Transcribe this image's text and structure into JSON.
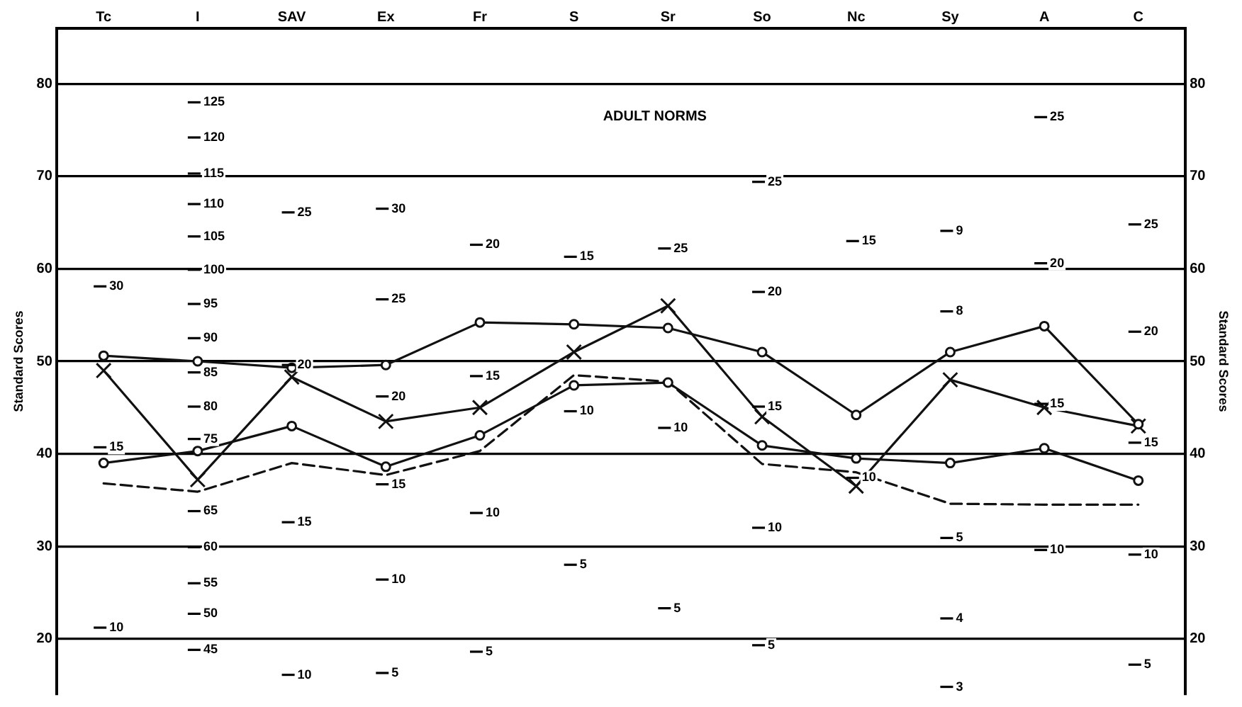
{
  "chart_data": {
    "type": "line",
    "ylabel": "Standard Scores",
    "y2label": "Standard Scores",
    "categories": [
      "Tc",
      "I",
      "SAV",
      "Ex",
      "Fr",
      "S",
      "Sr",
      "So",
      "Nc",
      "Sy",
      "A",
      "C"
    ],
    "series": [
      {
        "color": "#111111",
        "marker": "circle",
        "line_style": "solid",
        "values": [
          50.6,
          50,
          49.3,
          49.6,
          54.2,
          54,
          53.6,
          51,
          44.2,
          51,
          53.8,
          43.2
        ]
      },
      {
        "color": "#111111",
        "marker": "circle",
        "line_style": "solid",
        "values": [
          39,
          40.3,
          43,
          38.6,
          42,
          47.4,
          47.7,
          40.9,
          39.5,
          39,
          40.6,
          37.1
        ]
      },
      {
        "color": "#111111",
        "marker": "none",
        "line_style": "dashed",
        "values": [
          36.8,
          35.9,
          39,
          37.7,
          40.3,
          48.5,
          47.8,
          38.9,
          38,
          34.6,
          34.5,
          34.5
        ]
      },
      {
        "color": "#111111",
        "marker": "cross",
        "line_style": "solid",
        "values": [
          49,
          37.2,
          48.3,
          43.5,
          45,
          51,
          56,
          44,
          36.5,
          48,
          45,
          43
        ]
      }
    ],
    "ylim": [
      14,
      86
    ],
    "yticks": [
      20,
      30,
      40,
      50,
      60,
      70,
      80
    ],
    "y2lim": [
      14,
      86
    ],
    "y2ticks": [
      20,
      30,
      40,
      50,
      60,
      70,
      80
    ],
    "grid": "y",
    "legend": false,
    "annotations": [
      "ADULT NORMS",
      "30",
      "15",
      "10",
      "125",
      "120",
      "115",
      "110",
      "105",
      "100",
      "95",
      "90",
      "85",
      "80",
      "75",
      "65",
      "60",
      "55",
      "50",
      "45",
      "25",
      "20",
      "15",
      "10",
      "30",
      "25",
      "20",
      "15",
      "10",
      "5",
      "20",
      "15",
      "10",
      "5",
      "15",
      "10",
      "5",
      "25",
      "10",
      "5",
      "25",
      "20",
      "15",
      "10",
      "5",
      "15",
      "10",
      "9",
      "8",
      "5",
      "4",
      "3",
      "25",
      "20",
      "15",
      "10",
      "25",
      "20",
      "15",
      "10",
      "5"
    ]
  }
}
